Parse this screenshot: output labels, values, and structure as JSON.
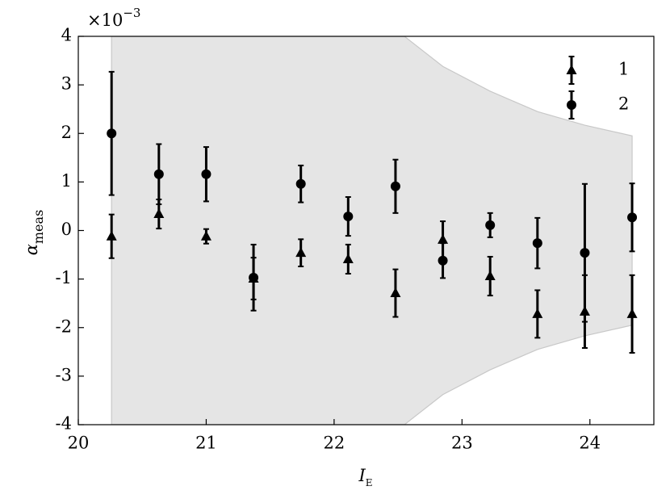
{
  "chart_data": {
    "type": "errorbar",
    "xlabel": "I",
    "xlabel_sub": "E",
    "ylabel": "α",
    "ylabel_sub": "meas",
    "offset_text": {
      "base": "×10",
      "exponent": "−3"
    },
    "xlim": [
      20,
      24.5
    ],
    "ylim": [
      -4,
      4
    ],
    "xticks": [
      20,
      21,
      22,
      23,
      24
    ],
    "yticks": [
      -4,
      -3,
      -2,
      -1,
      0,
      1,
      2,
      3,
      4
    ],
    "legend_position": "upper right",
    "x": [
      20.26,
      20.63,
      21.0,
      21.37,
      21.74,
      22.11,
      22.48,
      22.85,
      23.22,
      23.59,
      23.96,
      24.33
    ],
    "series": [
      {
        "name": "1",
        "marker": "triangle",
        "color": "#000000",
        "values": [
          -0.12,
          0.34,
          -0.12,
          -0.99,
          -0.46,
          -0.59,
          -1.29,
          -0.19,
          -0.94,
          -1.72,
          -1.67,
          -1.72
        ],
        "errors": [
          0.45,
          0.3,
          0.15,
          0.43,
          0.28,
          0.3,
          0.49,
          0.38,
          0.4,
          0.49,
          0.75,
          0.8
        ]
      },
      {
        "name": "2",
        "marker": "circle",
        "color": "#000000",
        "values": [
          2.0,
          1.16,
          1.16,
          -0.97,
          0.96,
          0.29,
          0.91,
          -0.62,
          0.11,
          -0.26,
          -0.46,
          0.27
        ],
        "errors": [
          1.27,
          0.62,
          0.56,
          0.68,
          0.38,
          0.4,
          0.55,
          0.36,
          0.25,
          0.52,
          1.42,
          0.7
        ]
      }
    ],
    "band": {
      "color": "#e5e5e5",
      "x": [
        20.26,
        22.55,
        22.85,
        23.22,
        23.59,
        23.96,
        24.33
      ],
      "upper": [
        4,
        4,
        3.38,
        2.87,
        2.45,
        2.17,
        1.95
      ],
      "lower": [
        -4,
        -4,
        -3.38,
        -2.87,
        -2.45,
        -2.17,
        -1.95
      ]
    }
  }
}
